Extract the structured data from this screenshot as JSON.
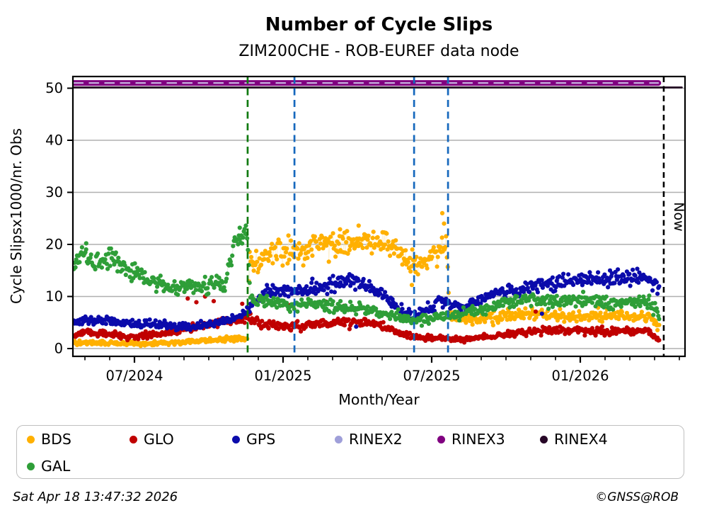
{
  "title": "Number of Cycle Slips",
  "subtitle": "ZIM200CHE - ROB-EUREF data node",
  "footer": {
    "timestamp": "Sat Apr 18 13:47:32 2026",
    "credit": "©GNSS@ROB"
  },
  "legend": {
    "items": [
      {
        "label": "BDS",
        "color": "#ffb000",
        "row": 0,
        "col": 0
      },
      {
        "label": "GLO",
        "color": "#c00000",
        "row": 0,
        "col": 1
      },
      {
        "label": "GPS",
        "color": "#0b0bab",
        "row": 0,
        "col": 2
      },
      {
        "label": "RINEX2",
        "color": "#9f9fd9",
        "row": 0,
        "col": 3
      },
      {
        "label": "RINEX3",
        "color": "#800080",
        "row": 0,
        "col": 4
      },
      {
        "label": "RINEX4",
        "color": "#270727",
        "row": 0,
        "col": 5
      },
      {
        "label": "GAL",
        "color": "#2e9e38",
        "row": 1,
        "col": 0
      }
    ]
  },
  "chart_data": {
    "type": "scatter",
    "title": "Number of Cycle Slips",
    "subtitle": "ZIM200CHE - ROB-EUREF data node",
    "xlabel": "Month/Year",
    "ylabel": "Cycle Slipsx1000/nr. Obs",
    "x_unit": "months_since_2024-07-01",
    "xlim_months": [
      -2.486,
      22.229
    ],
    "ylim": [
      -1.5,
      52.4
    ],
    "yticks": [
      0,
      10,
      20,
      30,
      40,
      50
    ],
    "xticks": {
      "months": [
        0,
        6,
        12,
        18
      ],
      "labels": [
        "07/2024",
        "01/2025",
        "07/2025",
        "01/2026"
      ],
      "minor_every_month": true
    },
    "grid": {
      "horizontal": true,
      "vertical": false,
      "color": "#b0b0b0"
    },
    "now_marker": {
      "label": "Now",
      "month": 21.37,
      "color": "#000000"
    },
    "event_lines": [
      {
        "color": "#107a10",
        "months": [
          4.57
        ]
      },
      {
        "color": "#1668bd",
        "months": [
          6.46,
          11.29,
          12.66
        ]
      }
    ],
    "rinex_lines": [
      {
        "name": "RINEX3",
        "value": 51.0,
        "start_month": -2.45,
        "end_month": 21.15,
        "color": "#800080",
        "width": 8,
        "style": "solid"
      },
      {
        "name": "RINEX2",
        "value": 51.0,
        "start_month": -2.45,
        "end_month": 21.15,
        "color": "#cbbfe6",
        "width": 2,
        "style": "dashed"
      },
      {
        "name": "RINEX4",
        "value": 50.15,
        "start_month": -2.45,
        "end_month": 22.1,
        "color": "#1e051e",
        "width": 2.6,
        "style": "solid"
      }
    ],
    "sampling": {
      "points_per_month": 30,
      "start_month": -2.45,
      "end_month": 21.2
    },
    "series": [
      {
        "name": "BDS",
        "color": "#ffb000",
        "line_tint": "#ffe7b0",
        "seed": 101,
        "noise_base": 0.3,
        "noise_scale": 0.125,
        "trend": [
          [
            -2.45,
            1.2
          ],
          [
            -1.5,
            1.1
          ],
          [
            -0.5,
            1.0
          ],
          [
            0.5,
            1.0
          ],
          [
            1.5,
            1.2
          ],
          [
            2.5,
            1.4
          ],
          [
            3.5,
            1.7
          ],
          [
            4.55,
            2.0
          ],
          [
            4.63,
            16.0
          ],
          [
            5.2,
            17.5
          ],
          [
            6.0,
            18.8
          ],
          [
            7.0,
            19.3
          ],
          [
            8.0,
            19.8
          ],
          [
            9.0,
            20.8
          ],
          [
            9.6,
            20.8
          ],
          [
            10.3,
            19.5
          ],
          [
            10.9,
            17.5
          ],
          [
            11.4,
            15.8
          ],
          [
            11.9,
            16.8
          ],
          [
            12.3,
            18.8
          ],
          [
            12.6,
            20.5
          ],
          [
            12.72,
            6.8
          ],
          [
            13.5,
            5.6
          ],
          [
            14.5,
            5.9
          ],
          [
            15.5,
            6.4
          ],
          [
            16.3,
            6.6
          ],
          [
            17.2,
            6.1
          ],
          [
            18.0,
            6.3
          ],
          [
            19.0,
            6.6
          ],
          [
            20.0,
            6.2
          ],
          [
            20.8,
            5.8
          ],
          [
            21.2,
            4.0
          ]
        ],
        "outliers": [
          [
            12.43,
            26.0
          ],
          [
            9.05,
            23.6
          ],
          [
            8.3,
            22.9
          ],
          [
            12.5,
            24.0
          ],
          [
            11.2,
            12.2
          ]
        ]
      },
      {
        "name": "GLO",
        "color": "#c00000",
        "line_tint": "#f0c6c6",
        "seed": 202,
        "noise_base": 0.3,
        "noise_scale": 0.12,
        "trend": [
          [
            -2.45,
            2.6
          ],
          [
            -1.8,
            3.1
          ],
          [
            -1.1,
            2.7
          ],
          [
            -0.3,
            2.3
          ],
          [
            0.5,
            2.5
          ],
          [
            1.2,
            2.8
          ],
          [
            1.9,
            3.6
          ],
          [
            2.6,
            4.4
          ],
          [
            3.3,
            5.0
          ],
          [
            4.0,
            5.4
          ],
          [
            4.57,
            6.0
          ],
          [
            5.1,
            4.7
          ],
          [
            5.8,
            4.3
          ],
          [
            6.6,
            4.4
          ],
          [
            7.4,
            4.7
          ],
          [
            8.1,
            5.0
          ],
          [
            8.9,
            5.2
          ],
          [
            9.6,
            4.8
          ],
          [
            10.2,
            4.1
          ],
          [
            10.7,
            3.1
          ],
          [
            11.2,
            2.3
          ],
          [
            12.0,
            2.1
          ],
          [
            12.8,
            2.0
          ],
          [
            13.5,
            1.9
          ],
          [
            14.3,
            2.3
          ],
          [
            15.1,
            2.9
          ],
          [
            15.9,
            3.3
          ],
          [
            16.7,
            3.5
          ],
          [
            17.5,
            3.4
          ],
          [
            18.3,
            3.5
          ],
          [
            19.1,
            3.3
          ],
          [
            19.9,
            3.5
          ],
          [
            20.7,
            3.3
          ],
          [
            21.2,
            1.7
          ]
        ],
        "outliers": [
          [
            2.15,
            9.6
          ],
          [
            2.5,
            8.9
          ],
          [
            2.85,
            10.0
          ],
          [
            3.2,
            9.1
          ],
          [
            4.35,
            8.6
          ],
          [
            6.3,
            8.4
          ],
          [
            7.1,
            8.8
          ],
          [
            7.75,
            9.0
          ],
          [
            8.45,
            8.2
          ],
          [
            16.2,
            7.1
          ]
        ]
      },
      {
        "name": "GPS",
        "color": "#0b0bab",
        "line_tint": "#c6c9ea",
        "seed": 303,
        "noise_base": 0.35,
        "noise_scale": 0.08,
        "trend": [
          [
            -2.45,
            5.0
          ],
          [
            -1.6,
            5.4
          ],
          [
            -0.7,
            5.0
          ],
          [
            0.3,
            4.8
          ],
          [
            1.2,
            4.4
          ],
          [
            2.1,
            4.1
          ],
          [
            3.0,
            4.6
          ],
          [
            3.8,
            5.4
          ],
          [
            4.4,
            6.6
          ],
          [
            4.8,
            8.5
          ],
          [
            5.3,
            10.6
          ],
          [
            5.8,
            11.4
          ],
          [
            6.3,
            10.8
          ],
          [
            7.0,
            11.4
          ],
          [
            7.7,
            12.1
          ],
          [
            8.4,
            12.7
          ],
          [
            9.0,
            13.1
          ],
          [
            9.6,
            11.9
          ],
          [
            10.1,
            10.2
          ],
          [
            10.7,
            7.5
          ],
          [
            11.3,
            6.1
          ],
          [
            11.9,
            7.9
          ],
          [
            12.4,
            9.4
          ],
          [
            12.9,
            8.3
          ],
          [
            13.3,
            7.9
          ],
          [
            14.0,
            9.7
          ],
          [
            14.8,
            10.8
          ],
          [
            15.5,
            11.1
          ],
          [
            16.1,
            12.2
          ],
          [
            16.8,
            12.6
          ],
          [
            17.5,
            13.0
          ],
          [
            18.2,
            13.3
          ],
          [
            19.0,
            13.3
          ],
          [
            19.8,
            13.7
          ],
          [
            20.6,
            13.1
          ],
          [
            21.0,
            12.7
          ],
          [
            21.2,
            10.6
          ]
        ],
        "outliers": [
          [
            8.95,
            4.2
          ],
          [
            16.45,
            6.7
          ],
          [
            20.3,
            15.3
          ],
          [
            19.2,
            15.0
          ]
        ]
      },
      {
        "name": "GAL",
        "color": "#2e9e38",
        "line_tint": "#c8e4c6",
        "seed": 404,
        "noise_base": 0.4,
        "noise_scale": 0.095,
        "trend": [
          [
            -2.45,
            16.0
          ],
          [
            -2.1,
            18.0
          ],
          [
            -1.7,
            17.0
          ],
          [
            -1.3,
            16.3
          ],
          [
            -0.8,
            17.0
          ],
          [
            -0.3,
            15.2
          ],
          [
            0.3,
            13.8
          ],
          [
            0.9,
            12.4
          ],
          [
            1.6,
            11.7
          ],
          [
            2.3,
            12.0
          ],
          [
            3.0,
            12.3
          ],
          [
            3.7,
            12.5
          ],
          [
            4.05,
            20.3
          ],
          [
            4.35,
            21.5
          ],
          [
            4.57,
            22.0
          ],
          [
            4.68,
            9.6
          ],
          [
            5.4,
            8.7
          ],
          [
            6.3,
            8.3
          ],
          [
            7.2,
            8.5
          ],
          [
            8.2,
            8.2
          ],
          [
            9.1,
            7.7
          ],
          [
            9.9,
            7.1
          ],
          [
            10.6,
            6.1
          ],
          [
            11.3,
            5.3
          ],
          [
            12.0,
            5.7
          ],
          [
            12.7,
            6.4
          ],
          [
            13.5,
            6.9
          ],
          [
            14.3,
            7.5
          ],
          [
            15.1,
            8.8
          ],
          [
            15.9,
            9.4
          ],
          [
            16.7,
            9.2
          ],
          [
            17.5,
            9.0
          ],
          [
            18.3,
            9.4
          ],
          [
            19.1,
            9.0
          ],
          [
            19.9,
            8.8
          ],
          [
            20.7,
            8.7
          ],
          [
            21.05,
            7.9
          ],
          [
            21.2,
            5.4
          ]
        ],
        "outliers": [
          [
            -1.95,
            20.2
          ],
          [
            4.25,
            23.2
          ],
          [
            4.5,
            23.6
          ],
          [
            11.6,
            4.4
          ]
        ]
      }
    ]
  }
}
